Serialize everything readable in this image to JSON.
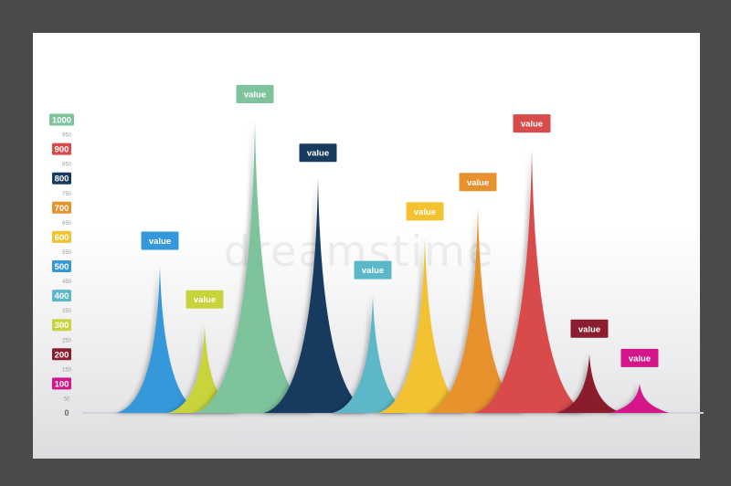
{
  "chart_data": {
    "type": "area",
    "title": "",
    "xlabel": "",
    "ylabel": "",
    "ylim": [
      0,
      1000
    ],
    "grid": false,
    "y_ticks_major": [
      {
        "value": 1000,
        "label": "1000",
        "color": "#7dc49d"
      },
      {
        "value": 900,
        "label": "900",
        "color": "#d94b4b"
      },
      {
        "value": 800,
        "label": "800",
        "color": "#173a5e"
      },
      {
        "value": 700,
        "label": "700",
        "color": "#e8922f"
      },
      {
        "value": 600,
        "label": "600",
        "color": "#f2c230"
      },
      {
        "value": 500,
        "label": "500",
        "color": "#3498db"
      },
      {
        "value": 400,
        "label": "400",
        "color": "#5bb8c9"
      },
      {
        "value": 300,
        "label": "300",
        "color": "#c9d43c"
      },
      {
        "value": 200,
        "label": "200",
        "color": "#8b1e2e"
      },
      {
        "value": 100,
        "label": "100",
        "color": "#d4168a"
      }
    ],
    "y_ticks_minor": [
      {
        "value": 950,
        "label": "950"
      },
      {
        "value": 850,
        "label": "850"
      },
      {
        "value": 750,
        "label": "750"
      },
      {
        "value": 650,
        "label": "650"
      },
      {
        "value": 550,
        "label": "550"
      },
      {
        "value": 450,
        "label": "450"
      },
      {
        "value": 350,
        "label": "350"
      },
      {
        "value": 250,
        "label": "250"
      },
      {
        "value": 150,
        "label": "150"
      },
      {
        "value": 50,
        "label": "50"
      }
    ],
    "y_zero_label": "0",
    "peaks": [
      {
        "value": 500,
        "color": "#3498db",
        "label": "value"
      },
      {
        "value": 300,
        "color": "#c9d43c",
        "label": "value"
      },
      {
        "value": 1000,
        "color": "#7dc49d",
        "label": "value"
      },
      {
        "value": 800,
        "color": "#173a5e",
        "label": "value"
      },
      {
        "value": 400,
        "color": "#5bb8c9",
        "label": "value"
      },
      {
        "value": 600,
        "color": "#f2c230",
        "label": "value"
      },
      {
        "value": 700,
        "color": "#e8922f",
        "label": "value"
      },
      {
        "value": 900,
        "color": "#d94b4b",
        "label": "value"
      },
      {
        "value": 200,
        "color": "#8b1e2e",
        "label": "value"
      },
      {
        "value": 100,
        "color": "#d4168a",
        "label": "value"
      }
    ]
  },
  "watermark": "dreamstime"
}
